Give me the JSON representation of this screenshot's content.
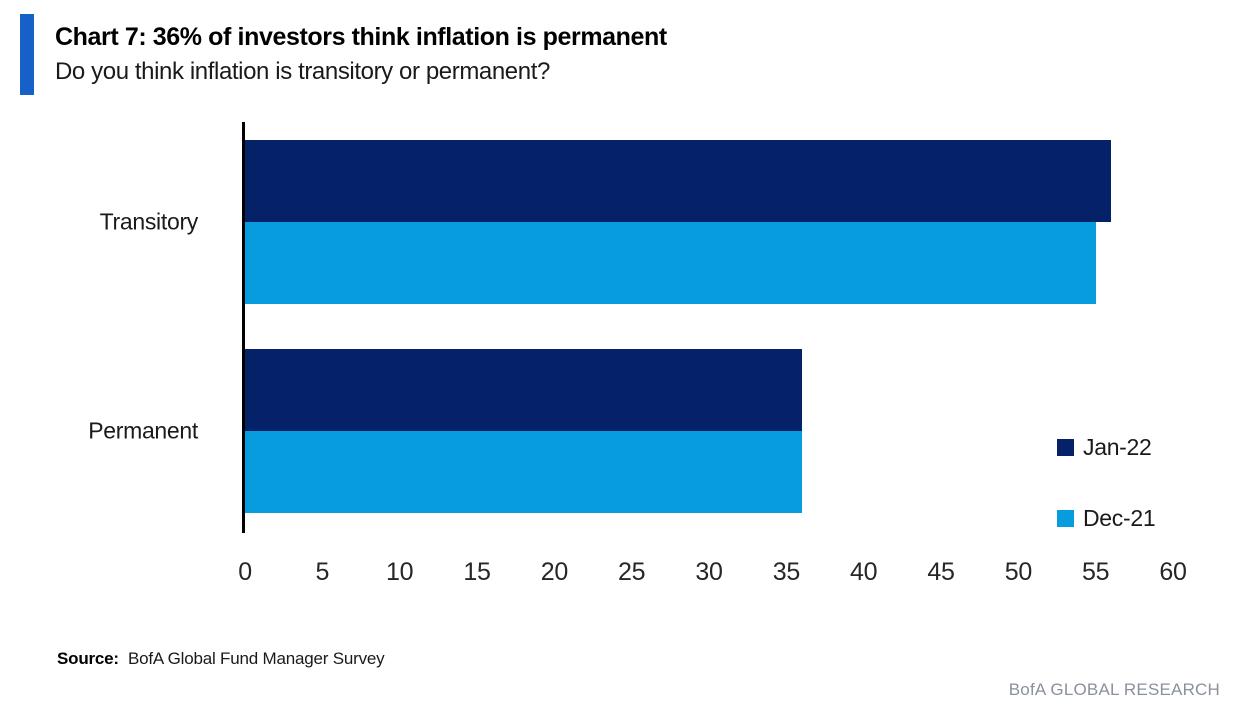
{
  "header": {
    "title": "Chart 7: 36% of investors think inflation is permanent",
    "subtitle": "Do you think inflation is transitory or permanent?"
  },
  "chart_data": {
    "type": "bar",
    "orientation": "horizontal",
    "title": "Chart 7: 36% of investors think inflation is permanent",
    "subtitle": "Do you think inflation is transitory or permanent?",
    "categories": [
      "Transitory",
      "Permanent"
    ],
    "series": [
      {
        "name": "Jan-22",
        "color": "#052269",
        "values": [
          56,
          36
        ]
      },
      {
        "name": "Dec-21",
        "color": "#069CDE",
        "values": [
          55,
          36
        ]
      }
    ],
    "xlabel": "",
    "ylabel": "",
    "xlim": [
      0,
      60
    ],
    "xticks": [
      0,
      5,
      10,
      15,
      20,
      25,
      30,
      35,
      40,
      45,
      50,
      55,
      60
    ],
    "grid": false,
    "legend_position": "right-lower"
  },
  "footer": {
    "source_label": "Source:",
    "source_text": "BofA Global Fund Manager Survey",
    "branding": "BofA GLOBAL RESEARCH"
  },
  "colors": {
    "accent_bar": "#1660C8",
    "jan22_navy": "#052269",
    "dec21_blue": "#069CDE",
    "axis_black": "#000000",
    "branding_gray": "#8a919c"
  }
}
